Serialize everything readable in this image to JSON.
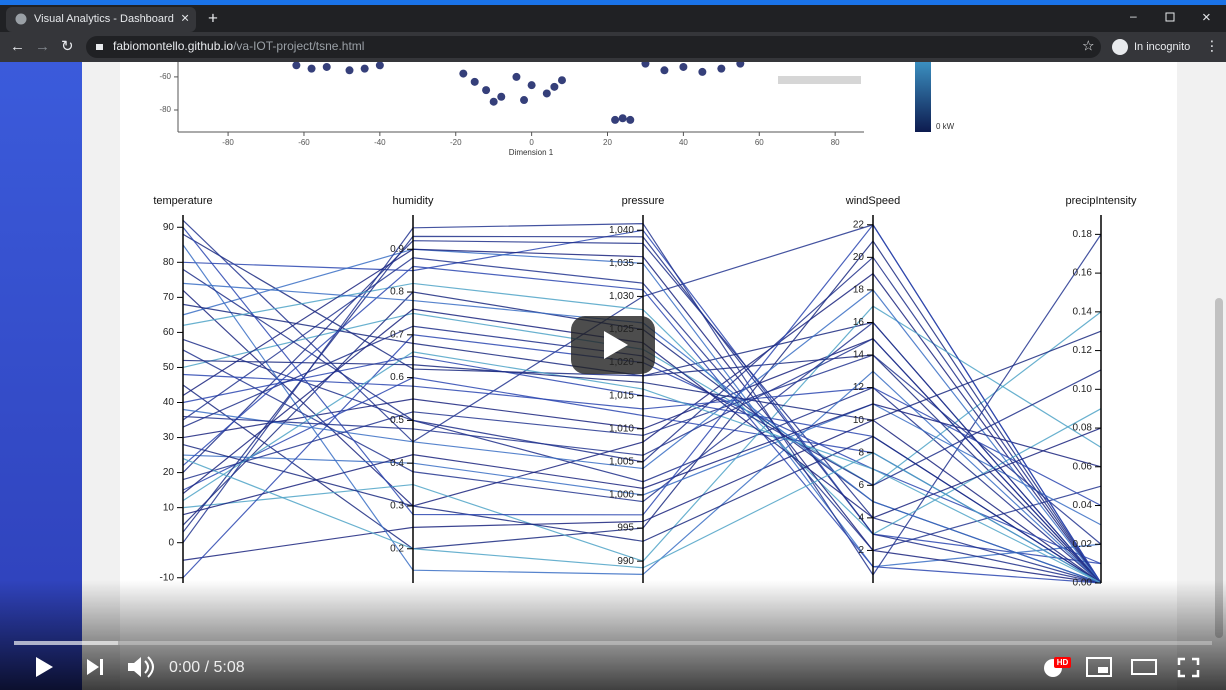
{
  "browser": {
    "tab_title": "Visual Analytics - Dashboard",
    "url_host": "fabiomontello.github.io",
    "url_path": "/va-IOT-project/tsne.html",
    "incognito": "In incognito"
  },
  "chart_data": [
    {
      "type": "scatter",
      "x_label": "Dimension 1",
      "xlim": [
        -93.2,
        87.6
      ],
      "ylim": [
        -93.3,
        -51
      ],
      "xticks": [
        -80,
        -60,
        -40,
        -20,
        0,
        20,
        40,
        60,
        80
      ],
      "yticks": [
        -60,
        -80
      ],
      "color": "#1f2a6b",
      "colorbar_label": "0 kW",
      "x": [
        -62,
        -58,
        -54,
        -48,
        -44,
        -40,
        -18,
        -15,
        -12,
        -8,
        -4,
        0,
        4,
        8,
        -10,
        -2,
        6,
        22,
        24,
        26,
        30,
        35,
        40,
        45,
        50,
        55
      ],
      "y": [
        -53,
        -55,
        -54,
        -56,
        -55,
        -53,
        -58,
        -63,
        -68,
        -72,
        -60,
        -65,
        -70,
        -62,
        -75,
        -74,
        -66,
        -86,
        -85,
        -86,
        -52,
        -56,
        -54,
        -57,
        -55,
        -52
      ]
    },
    {
      "type": "parallel",
      "axes": [
        {
          "name": "temperature",
          "ylim": [
            -11.5,
            93.5
          ],
          "yticks": [
            -10,
            0,
            10,
            20,
            30,
            40,
            50,
            60,
            70,
            80,
            90
          ]
        },
        {
          "name": "humidity",
          "ylim": [
            0.12,
            0.98
          ],
          "yticks": [
            0.2,
            0.3,
            0.4,
            0.5,
            0.6,
            0.7,
            0.8,
            0.9
          ]
        },
        {
          "name": "pressure",
          "ylim": [
            986.7,
            1042.3
          ],
          "yticks": [
            990,
            995,
            {
              "value": 1000,
              "label": "1,000"
            },
            {
              "value": 1005,
              "label": "1,005"
            },
            {
              "value": 1010,
              "label": "1,010"
            },
            {
              "value": 1015,
              "label": "1,015"
            },
            {
              "value": 1020,
              "label": "1,020"
            },
            {
              "value": 1025,
              "label": "1,025"
            },
            {
              "value": 1030,
              "label": "1,030"
            },
            {
              "value": 1035,
              "label": "1,035"
            },
            {
              "value": 1040,
              "label": "1,040"
            }
          ]
        },
        {
          "name": "windSpeed",
          "ylim": [
            0,
            22.6
          ],
          "yticks": [
            2,
            4,
            6,
            8,
            10,
            12,
            14,
            16,
            18,
            20,
            22
          ]
        },
        {
          "name": "precipIntensity",
          "ylim": [
            0,
            0.19
          ],
          "yticks": [
            {
              "value": 0,
              "label": "0.00"
            },
            0.02,
            0.04,
            0.06,
            0.08,
            {
              "value": 0.1,
              "label": "0.10"
            },
            0.12,
            0.14,
            0.16,
            0.18
          ]
        }
      ],
      "lines": [
        [
          88,
          0.62,
          1018,
          16,
          0
        ],
        [
          92,
          0.45,
          1030,
          22,
          0
        ],
        [
          80,
          0.85,
          1040,
          3,
          0.01
        ],
        [
          72,
          0.3,
          1008,
          19,
          0
        ],
        [
          65,
          0.9,
          1035,
          1,
          0.02
        ],
        [
          58,
          0.5,
          1002,
          12,
          0
        ],
        [
          50,
          0.75,
          1022,
          6,
          0.14
        ],
        [
          45,
          0.2,
          995,
          21,
          0
        ],
        [
          40,
          0.65,
          1015,
          9,
          0
        ],
        [
          35,
          0.88,
          1032,
          2,
          0.05
        ],
        [
          30,
          0.55,
          1010,
          15,
          0
        ],
        [
          25,
          0.4,
          1000,
          11,
          0.03
        ],
        [
          20,
          0.92,
          1038,
          4,
          0
        ],
        [
          15,
          0.6,
          1012,
          8,
          0
        ],
        [
          10,
          0.35,
          990,
          17,
          0.07
        ],
        [
          5,
          0.8,
          1025,
          5,
          0
        ],
        [
          0,
          0.95,
          1041,
          0.5,
          0.18
        ],
        [
          -5,
          0.25,
          996,
          10,
          0
        ],
        [
          -10,
          0.7,
          1020,
          7,
          0.01
        ],
        [
          85,
          0.15,
          988,
          13,
          0
        ],
        [
          78,
          0.5,
          1005,
          20,
          0
        ],
        [
          68,
          0.68,
          1018,
          14,
          0
        ],
        [
          62,
          0.82,
          1028,
          3,
          0.09
        ],
        [
          55,
          0.38,
          999,
          16,
          0
        ],
        [
          48,
          0.58,
          1013,
          12,
          0.04
        ],
        [
          42,
          0.9,
          1036,
          2,
          0
        ],
        [
          38,
          0.45,
          1004,
          18,
          0
        ],
        [
          33,
          0.72,
          1021,
          6,
          0.11
        ],
        [
          28,
          0.3,
          993,
          9,
          0
        ],
        [
          22,
          0.86,
          1031,
          1,
          0
        ],
        [
          18,
          0.52,
          1009,
          14,
          0.02
        ],
        [
          12,
          0.66,
          1016,
          7,
          0
        ],
        [
          8,
          0.42,
          1001,
          11,
          0.06
        ],
        [
          3,
          0.93,
          1039,
          3,
          0
        ],
        [
          90,
          0.28,
          997,
          22,
          0
        ],
        [
          74,
          0.78,
          1026,
          5,
          0
        ],
        [
          52,
          0.63,
          1017,
          10,
          0.13
        ],
        [
          36,
          0.48,
          1006,
          15,
          0
        ],
        [
          24,
          0.2,
          989,
          8,
          0
        ],
        [
          14,
          0.76,
          1023,
          4,
          0.08
        ]
      ],
      "colors": [
        "#1b2a80",
        "#23358f",
        "#2b47b0",
        "#1a237e",
        "#3a6fc4",
        "#1f2f8a",
        "#4fa3c7",
        "#1b2a80",
        "#2b47b0",
        "#23358f",
        "#1a237e",
        "#3a6fc4",
        "#1f2f8a",
        "#2b47b0",
        "#4fa3c7",
        "#1b2a80",
        "#23358f",
        "#1a237e",
        "#2b47b0",
        "#3a6fc4",
        "#1f2f8a",
        "#1b2a80",
        "#4fa3c7",
        "#23358f",
        "#2b47b0",
        "#1a237e",
        "#3a6fc4",
        "#1f2f8a",
        "#1b2a80",
        "#2b47b0",
        "#23358f",
        "#4fa3c7",
        "#1a237e",
        "#1f2f8a",
        "#2b47b0",
        "#3a6fc4",
        "#1b2a80",
        "#23358f",
        "#4fa3c7",
        "#1a237e"
      ]
    }
  ],
  "video": {
    "time": "0:00 / 5:08",
    "quality": "HD"
  }
}
